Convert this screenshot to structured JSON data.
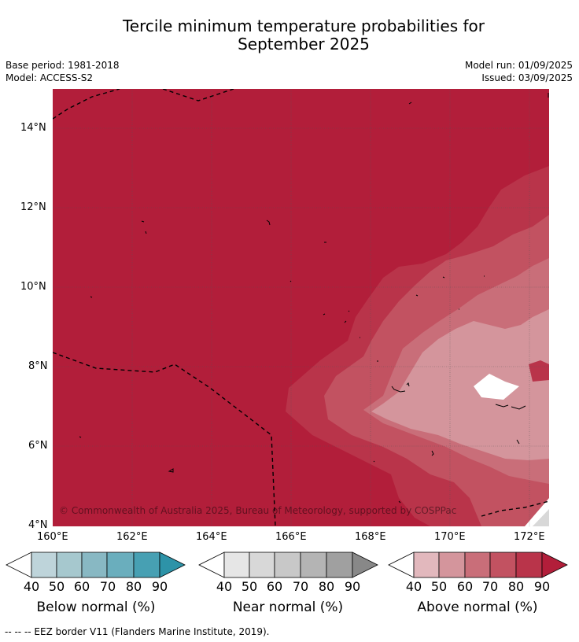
{
  "title_line1": "Tercile minimum temperature probabilities for",
  "title_line2": "September 2025",
  "base_period": "Base period: 1981-2018",
  "model": "Model: ACCESS-S2",
  "model_run": "Model run: 01/09/2025",
  "issued": "Issued: 03/09/2025",
  "copyright": "© Commonwealth of Australia 2025, Bureau of Meteorology, supported by COSPPac",
  "footnote": "-- -- -- EEZ border V11 (Flanders Marine Institute, 2019).",
  "map": {
    "lon_ticks": [
      "160°E",
      "162°E",
      "164°E",
      "166°E",
      "168°E",
      "170°E",
      "172°E"
    ],
    "lat_ticks": [
      "14°N",
      "12°N",
      "10°N",
      "8°N",
      "6°N",
      "4°N"
    ],
    "lon_range": [
      160,
      172.5
    ],
    "lat_range": [
      4,
      15
    ]
  },
  "colorbars": [
    {
      "name": "Below normal (%)",
      "ticks": [
        "40",
        "50",
        "60",
        "70",
        "80",
        "90"
      ],
      "colors": [
        "#ffffff",
        "#bed4da",
        "#a6c8ce",
        "#88b8c3",
        "#6aaebd",
        "#47a0b3",
        "#2d93a8"
      ]
    },
    {
      "name": "Near normal (%)",
      "ticks": [
        "40",
        "50",
        "60",
        "70",
        "80",
        "90"
      ],
      "colors": [
        "#ffffff",
        "#e6e6e6",
        "#d8d8d8",
        "#c8c8c8",
        "#b4b4b4",
        "#a0a0a0",
        "#888888"
      ]
    },
    {
      "name": "Above normal (%)",
      "ticks": [
        "40",
        "50",
        "60",
        "70",
        "80",
        "90"
      ],
      "colors": [
        "#ffffff",
        "#e2b8bd",
        "#d4959c",
        "#c96e79",
        "#c25261",
        "#b9344a",
        "#b21e3a"
      ]
    }
  ],
  "category_colors": {
    "above_90": "#b21e3a",
    "above_80": "#b9344a",
    "above_70": "#c25261",
    "above_60": "#c96e79",
    "above_50": "#d4959c",
    "near_50": "#d8d8d8"
  }
}
